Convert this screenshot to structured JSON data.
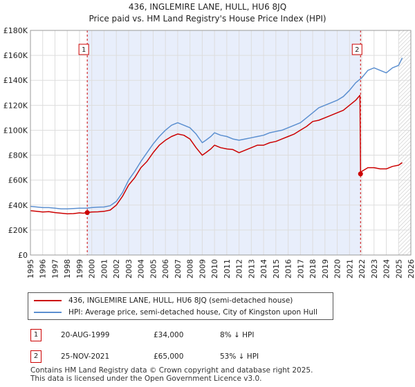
{
  "chart_data": {
    "type": "line",
    "title": "436, INGLEMIRE LANE, HULL, HU6 8JQ",
    "subtitle": "Price paid vs. HM Land Registry's House Price Index (HPI)",
    "xlim": [
      1995,
      2026
    ],
    "ylim": [
      0,
      180000
    ],
    "x_ticks": [
      "1995",
      "1996",
      "1997",
      "1998",
      "1999",
      "2000",
      "2001",
      "2002",
      "2003",
      "2004",
      "2005",
      "2006",
      "2007",
      "2008",
      "2009",
      "2010",
      "2011",
      "2012",
      "2013",
      "2014",
      "2015",
      "2016",
      "2017",
      "2018",
      "2019",
      "2020",
      "2021",
      "2022",
      "2023",
      "2024",
      "2025",
      "2026"
    ],
    "y_ticks": [
      {
        "value": 0,
        "label": "£0"
      },
      {
        "value": 20000,
        "label": "£20K"
      },
      {
        "value": 40000,
        "label": "£40K"
      },
      {
        "value": 60000,
        "label": "£60K"
      },
      {
        "value": 80000,
        "label": "£80K"
      },
      {
        "value": 100000,
        "label": "£100K"
      },
      {
        "value": 120000,
        "label": "£120K"
      },
      {
        "value": 140000,
        "label": "£140K"
      },
      {
        "value": 160000,
        "label": "£160K"
      },
      {
        "value": 180000,
        "label": "£180K"
      }
    ],
    "grid": true,
    "ownership_period": {
      "start": 1999.63,
      "end": 2021.9
    },
    "projection_start": 2025.0,
    "series": [
      {
        "name": "436, INGLEMIRE LANE, HULL, HU6 8JQ (semi-detached house)",
        "color": "#cc0000",
        "x": [
          1995.0,
          1995.5,
          1996.0,
          1996.5,
          1997.0,
          1997.5,
          1998.0,
          1998.5,
          1999.0,
          1999.3,
          1999.63,
          2000.0,
          2000.5,
          2001.0,
          2001.5,
          2002.0,
          2002.5,
          2003.0,
          2003.5,
          2004.0,
          2004.5,
          2005.0,
          2005.5,
          2006.0,
          2006.5,
          2007.0,
          2007.5,
          2008.0,
          2008.5,
          2009.0,
          2009.3,
          2009.7,
          2010.0,
          2010.5,
          2011.0,
          2011.5,
          2012.0,
          2012.5,
          2013.0,
          2013.5,
          2014.0,
          2014.5,
          2015.0,
          2015.5,
          2016.0,
          2016.5,
          2017.0,
          2017.5,
          2018.0,
          2018.5,
          2019.0,
          2019.5,
          2020.0,
          2020.5,
          2021.0,
          2021.5,
          2021.85,
          2021.9,
          2022.0,
          2022.5,
          2023.0,
          2023.5,
          2024.0,
          2024.5,
          2025.0,
          2025.3
        ],
        "values": [
          35500,
          35000,
          34500,
          34800,
          34000,
          33500,
          33000,
          33200,
          33800,
          33500,
          34000,
          34500,
          34600,
          35000,
          36000,
          40000,
          47000,
          56000,
          62000,
          70000,
          75000,
          82000,
          88000,
          92000,
          95000,
          97000,
          96000,
          93000,
          86000,
          80000,
          82000,
          85000,
          88000,
          86000,
          85000,
          84500,
          82000,
          84000,
          86000,
          88000,
          88000,
          90000,
          91000,
          93000,
          95000,
          97000,
          100000,
          103000,
          107000,
          108000,
          110000,
          112000,
          114000,
          116000,
          120000,
          124000,
          128000,
          65000,
          67000,
          70000,
          70000,
          69000,
          69000,
          71000,
          72000,
          74000
        ]
      },
      {
        "name": "HPI: Average price, semi-detached house, City of Kingston upon Hull",
        "color": "#5b8fd0",
        "x": [
          1995.0,
          1995.5,
          1996.0,
          1996.5,
          1997.0,
          1997.5,
          1998.0,
          1998.5,
          1999.0,
          1999.5,
          2000.0,
          2000.5,
          2001.0,
          2001.5,
          2002.0,
          2002.5,
          2003.0,
          2003.5,
          2004.0,
          2004.5,
          2005.0,
          2005.5,
          2006.0,
          2006.5,
          2007.0,
          2007.5,
          2008.0,
          2008.5,
          2009.0,
          2009.3,
          2009.7,
          2010.0,
          2010.5,
          2011.0,
          2011.5,
          2012.0,
          2012.5,
          2013.0,
          2013.5,
          2014.0,
          2014.5,
          2015.0,
          2015.5,
          2016.0,
          2016.5,
          2017.0,
          2017.5,
          2018.0,
          2018.5,
          2019.0,
          2019.5,
          2020.0,
          2020.5,
          2021.0,
          2021.5,
          2022.0,
          2022.5,
          2023.0,
          2023.5,
          2024.0,
          2024.5,
          2025.0,
          2025.3
        ],
        "values": [
          39000,
          38500,
          38000,
          38000,
          37500,
          37000,
          37000,
          37200,
          37500,
          37500,
          38000,
          38300,
          38500,
          39500,
          43000,
          50000,
          60000,
          67000,
          75000,
          82000,
          89000,
          95000,
          100000,
          104000,
          106000,
          104000,
          102000,
          97000,
          90000,
          92000,
          95000,
          98000,
          96000,
          95000,
          93000,
          92000,
          93000,
          94000,
          95000,
          96000,
          98000,
          99000,
          100000,
          102000,
          104000,
          106000,
          110000,
          114000,
          118000,
          120000,
          122000,
          124000,
          127000,
          132000,
          138000,
          142000,
          148000,
          150000,
          148000,
          146000,
          150000,
          152000,
          158000
        ]
      }
    ],
    "sales": [
      {
        "id": "1",
        "x": 1999.63,
        "value": 34000
      },
      {
        "id": "2",
        "x": 2021.9,
        "value": 65000
      }
    ]
  },
  "legend": {
    "property_label": "436, INGLEMIRE LANE, HULL, HU6 8JQ (semi-detached house)",
    "hpi_label": "HPI: Average price, semi-detached house, City of Kingston upon Hull"
  },
  "transactions": [
    {
      "num": "1",
      "date": "20-AUG-1999",
      "price": "£34,000",
      "hpi": "8% ↓ HPI"
    },
    {
      "num": "2",
      "date": "25-NOV-2021",
      "price": "£65,000",
      "hpi": "53% ↓ HPI"
    }
  ],
  "footer": {
    "line1": "Contains HM Land Registry data © Crown copyright and database right 2025.",
    "line2": "This data is licensed under the Open Government Licence v3.0."
  },
  "colors": {
    "property": "#cc0000",
    "hpi": "#5b8fd0",
    "shade": "#e8eefb",
    "grid": "#dddddd"
  }
}
